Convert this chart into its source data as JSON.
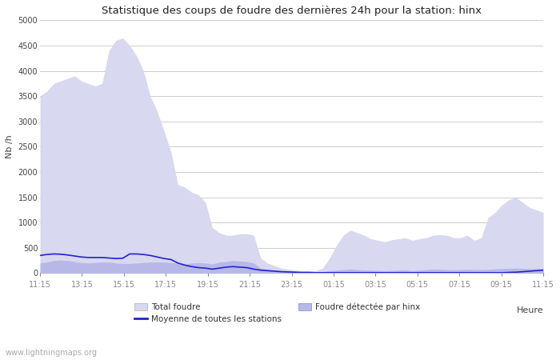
{
  "title": "Statistique des coups de foudre des dernières 24h pour la station: hinx",
  "xlabel": "Heure",
  "ylabel": "Nb /h",
  "ylim": [
    0,
    5000
  ],
  "yticks": [
    0,
    500,
    1000,
    1500,
    2000,
    2500,
    3000,
    3500,
    4000,
    4500,
    5000
  ],
  "xtick_labels": [
    "11:15",
    "13:15",
    "15:15",
    "17:15",
    "19:15",
    "21:15",
    "23:15",
    "01:15",
    "03:15",
    "05:15",
    "07:15",
    "09:15",
    "11:15"
  ],
  "bg_color": "#ffffff",
  "plot_bg_color": "#ffffff",
  "grid_color": "#cccccc",
  "watermark": "www.lightningmaps.org",
  "total_color": "#d8d8f0",
  "local_color": "#b8b8e8",
  "mean_color": "#2222cc",
  "total_fill": [
    3500,
    3600,
    3750,
    3800,
    3850,
    3900,
    3800,
    3750,
    3700,
    3750,
    4400,
    4600,
    4650,
    4500,
    4300,
    4000,
    3500,
    3200,
    2800,
    2400,
    1750,
    1700,
    1600,
    1550,
    1400,
    900,
    800,
    750,
    750,
    780,
    780,
    750,
    300,
    200,
    150,
    100,
    80,
    60,
    50,
    50,
    50,
    100,
    300,
    550,
    750,
    850,
    800,
    750,
    680,
    650,
    620,
    660,
    680,
    700,
    650,
    680,
    700,
    750,
    760,
    750,
    700,
    700,
    750,
    650,
    700,
    1100,
    1200,
    1350,
    1450,
    1500,
    1400,
    1300,
    1250,
    1200
  ],
  "local_fill": [
    200,
    220,
    250,
    260,
    250,
    230,
    210,
    200,
    210,
    220,
    220,
    200,
    190,
    190,
    200,
    210,
    220,
    220,
    220,
    210,
    200,
    180,
    200,
    210,
    200,
    180,
    220,
    230,
    250,
    240,
    230,
    200,
    100,
    80,
    60,
    50,
    40,
    30,
    30,
    25,
    20,
    30,
    50,
    60,
    70,
    80,
    70,
    65,
    60,
    55,
    50,
    55,
    60,
    65,
    50,
    60,
    70,
    80,
    75,
    70,
    65,
    70,
    75,
    70,
    70,
    75,
    85,
    90,
    95,
    100,
    95,
    90,
    90,
    90
  ],
  "mean_line": [
    350,
    370,
    380,
    375,
    360,
    340,
    320,
    310,
    310,
    310,
    300,
    290,
    295,
    380,
    380,
    370,
    350,
    320,
    290,
    270,
    200,
    160,
    130,
    110,
    100,
    80,
    100,
    120,
    130,
    120,
    110,
    80,
    60,
    50,
    40,
    30,
    25,
    20,
    15,
    15,
    10,
    10,
    10,
    10,
    10,
    10,
    10,
    10,
    10,
    10,
    10,
    10,
    10,
    10,
    10,
    10,
    10,
    10,
    10,
    10,
    10,
    10,
    10,
    10,
    10,
    10,
    10,
    10,
    15,
    20,
    30,
    40,
    50,
    60
  ]
}
